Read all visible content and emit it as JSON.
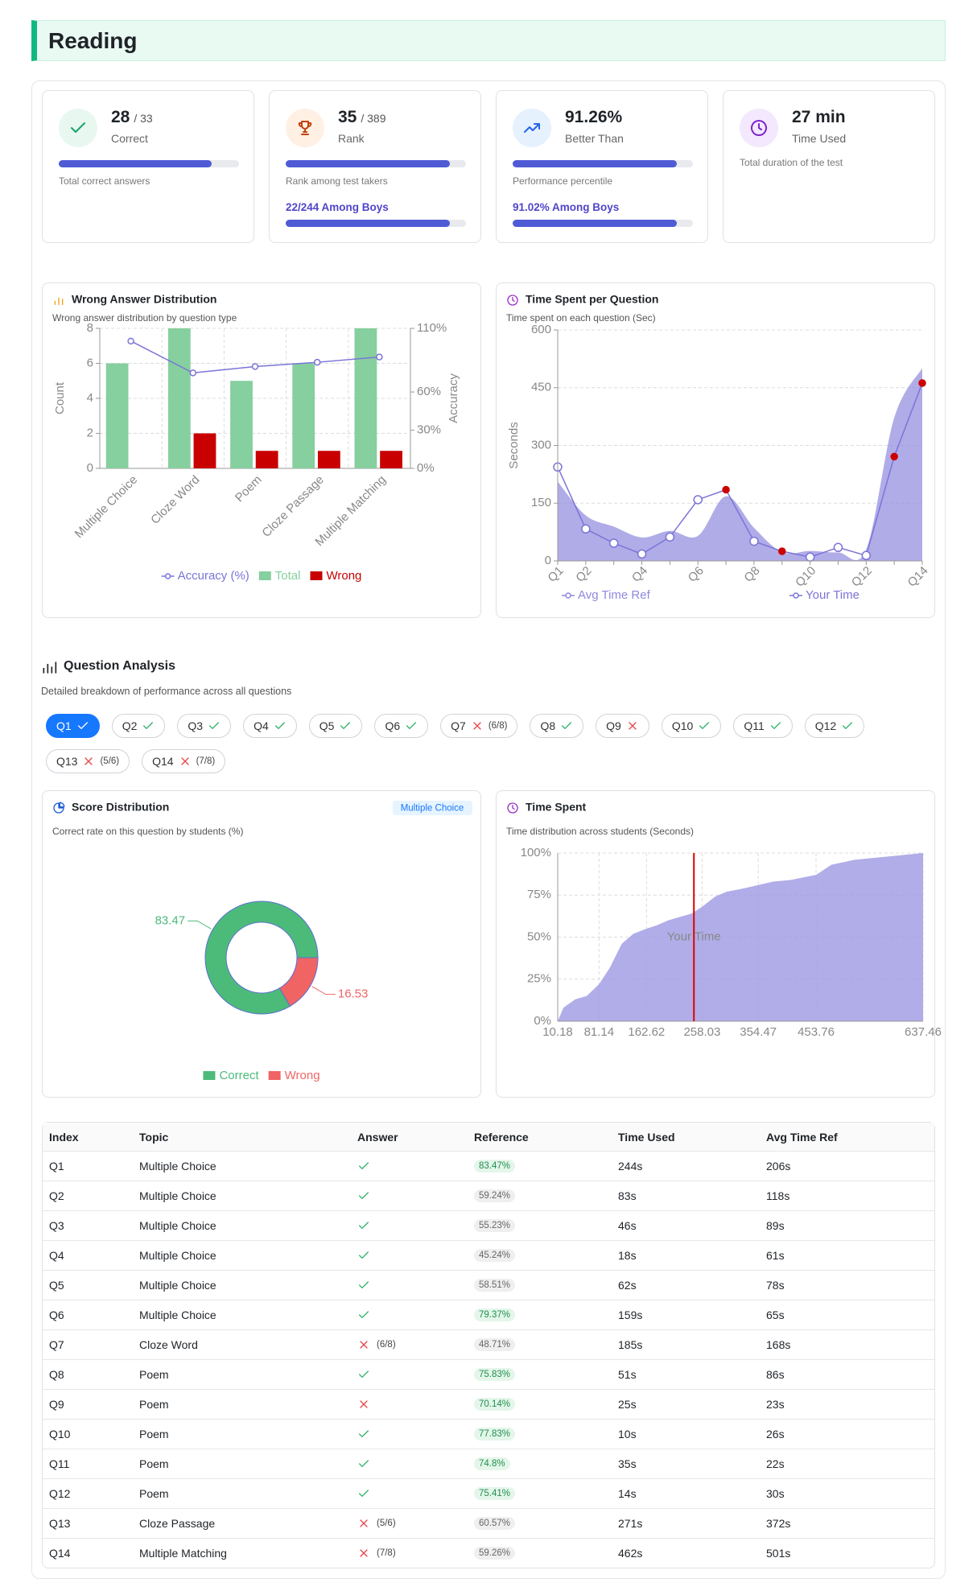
{
  "header": {
    "title": "Reading"
  },
  "stats": [
    {
      "value": "28",
      "total": "/ 33",
      "label": "Correct",
      "description": "Total correct answers",
      "progress": 84.8
    },
    {
      "value": "35",
      "total": "/ 389",
      "label": "Rank",
      "description": "Rank among test takers",
      "progress": 91,
      "sub": {
        "text": "22/244 Among Boys",
        "progress": 91
      }
    },
    {
      "value": "91.26%",
      "label": "Better Than",
      "description": "Performance percentile",
      "progress": 91.26,
      "sub": {
        "text": "91.02% Among Boys",
        "progress": 91.02
      }
    },
    {
      "value": "27 min",
      "label": "Time Used",
      "description": "Total duration of the test"
    }
  ],
  "chart_data": [
    {
      "type": "bar",
      "title": "Wrong Answer Distribution",
      "subtitle": "Wrong answer distribution by question type",
      "ylabel": "Count",
      "y2label": "Accuracy",
      "categories": [
        "Multiple Choice",
        "Cloze Word",
        "Poem",
        "Cloze Passage",
        "Multiple Matching"
      ],
      "series": [
        {
          "name": "Accuracy (%)",
          "type": "line",
          "axis": "y2",
          "color": "#7b74d8",
          "values": [
            100,
            75,
            80,
            83.33,
            87.5
          ]
        },
        {
          "name": "Total",
          "color": "#86cf9e",
          "values": [
            6,
            8,
            5,
            6,
            8
          ]
        },
        {
          "name": "Wrong",
          "color": "#c80000",
          "values": [
            0,
            2,
            1,
            1,
            1
          ]
        }
      ],
      "ylim": [
        0,
        8
      ],
      "yticks": [
        0,
        2,
        4,
        6,
        8
      ],
      "y2lim": [
        0,
        110
      ],
      "y2ticks": [
        {
          "value": 0,
          "label": "0%"
        },
        {
          "value": 30,
          "label": "30%"
        },
        {
          "value": 60,
          "label": "60%"
        },
        {
          "value": 110,
          "label": "110%"
        }
      ],
      "grid": true
    },
    {
      "type": "line",
      "title": "Time Spent per Question",
      "subtitle": "Time spent on each question (Sec)",
      "ylabel": "Seconds",
      "categories": [
        "Q1",
        "Q2",
        null,
        "Q4",
        null,
        "Q6",
        null,
        "Q8",
        null,
        "Q10",
        null,
        "Q12",
        null,
        "Q14"
      ],
      "series": [
        {
          "name": "Avg Time Ref",
          "type": "area",
          "color": "#8f89dd",
          "values": [
            206,
            118,
            89,
            61,
            78,
            65,
            168,
            86,
            23,
            26,
            22,
            30,
            372,
            501
          ]
        },
        {
          "name": "Your Time",
          "type": "line",
          "color": "#7b74d8",
          "wrong_point_color": "#cc0000",
          "values": [
            244,
            83,
            46,
            18,
            62,
            159,
            185,
            51,
            25,
            10,
            35,
            14,
            271,
            462
          ]
        }
      ],
      "ylim": [
        0,
        600
      ],
      "yticks": [
        0,
        150,
        300,
        450,
        600
      ],
      "grid": true
    },
    {
      "type": "pie",
      "title": "Score Distribution",
      "badge": "Multiple Choice",
      "subtitle": "Correct rate on this question by students (%)",
      "categories": [
        "Correct",
        "Wrong"
      ],
      "values": [
        83.47,
        16.53
      ],
      "colors": [
        "#4cbb7a",
        "#f06464"
      ],
      "donut": true
    },
    {
      "type": "area",
      "title": "Time Spent",
      "subtitle": "Time distribution across students (Seconds)",
      "color": "#9d98e2",
      "x": [
        10.18,
        20,
        40,
        60,
        81.14,
        100,
        120,
        140,
        162.62,
        180,
        200,
        220,
        240,
        258.03,
        280,
        300,
        330,
        354.47,
        380,
        410,
        453.76,
        480,
        520,
        580,
        637.46
      ],
      "values": [
        0,
        8,
        13,
        15,
        22,
        32,
        46,
        52,
        55,
        57,
        60,
        62,
        64,
        68,
        74,
        77,
        79,
        81,
        83,
        84,
        87,
        93,
        96,
        98,
        100
      ],
      "xlim": [
        10.18,
        637.46
      ],
      "xticks": [
        10.18,
        81.14,
        162.62,
        258.03,
        354.47,
        453.76,
        637.46
      ],
      "ylim": [
        0,
        100
      ],
      "yticks": [
        {
          "value": 0,
          "label": "0%"
        },
        {
          "value": 25,
          "label": "25%"
        },
        {
          "value": 50,
          "label": "50%"
        },
        {
          "value": 75,
          "label": "75%"
        },
        {
          "value": 100,
          "label": "100%"
        }
      ],
      "marker": {
        "value": 244,
        "label": "Your Time",
        "color": "#e00000"
      },
      "grid": true
    }
  ],
  "analysis": {
    "title": "Question Analysis",
    "subtitle": "Detailed breakdown of performance across all questions"
  },
  "selected_question": 0,
  "table": {
    "columns": [
      "Index",
      "Topic",
      "Answer",
      "Reference",
      "Time Used",
      "Avg Time Ref"
    ]
  },
  "questions": [
    {
      "index": "Q1",
      "topic": "Multiple Choice",
      "correct": true,
      "reference": "83.47%",
      "time": "244s",
      "avg": "206s"
    },
    {
      "index": "Q2",
      "topic": "Multiple Choice",
      "correct": true,
      "reference": "59.24%",
      "time": "83s",
      "avg": "118s"
    },
    {
      "index": "Q3",
      "topic": "Multiple Choice",
      "correct": true,
      "reference": "55.23%",
      "time": "46s",
      "avg": "89s"
    },
    {
      "index": "Q4",
      "topic": "Multiple Choice",
      "correct": true,
      "reference": "45.24%",
      "time": "18s",
      "avg": "61s"
    },
    {
      "index": "Q5",
      "topic": "Multiple Choice",
      "correct": true,
      "reference": "58.51%",
      "time": "62s",
      "avg": "78s"
    },
    {
      "index": "Q6",
      "topic": "Multiple Choice",
      "correct": true,
      "reference": "79.37%",
      "time": "159s",
      "avg": "65s"
    },
    {
      "index": "Q7",
      "topic": "Cloze Word",
      "correct": false,
      "score": "(6/8)",
      "reference": "48.71%",
      "time": "185s",
      "avg": "168s"
    },
    {
      "index": "Q8",
      "topic": "Poem",
      "correct": true,
      "reference": "75.83%",
      "time": "51s",
      "avg": "86s"
    },
    {
      "index": "Q9",
      "topic": "Poem",
      "correct": false,
      "reference": "70.14%",
      "time": "25s",
      "avg": "23s"
    },
    {
      "index": "Q10",
      "topic": "Poem",
      "correct": true,
      "reference": "77.83%",
      "time": "10s",
      "avg": "26s"
    },
    {
      "index": "Q11",
      "topic": "Poem",
      "correct": true,
      "reference": "74.8%",
      "time": "35s",
      "avg": "22s"
    },
    {
      "index": "Q12",
      "topic": "Poem",
      "correct": true,
      "reference": "75.41%",
      "time": "14s",
      "avg": "30s"
    },
    {
      "index": "Q13",
      "topic": "Cloze Passage",
      "correct": false,
      "score": "(5/6)",
      "reference": "60.57%",
      "time": "271s",
      "avg": "372s"
    },
    {
      "index": "Q14",
      "topic": "Multiple Matching",
      "correct": false,
      "score": "(7/8)",
      "reference": "59.26%",
      "time": "462s",
      "avg": "501s"
    }
  ]
}
